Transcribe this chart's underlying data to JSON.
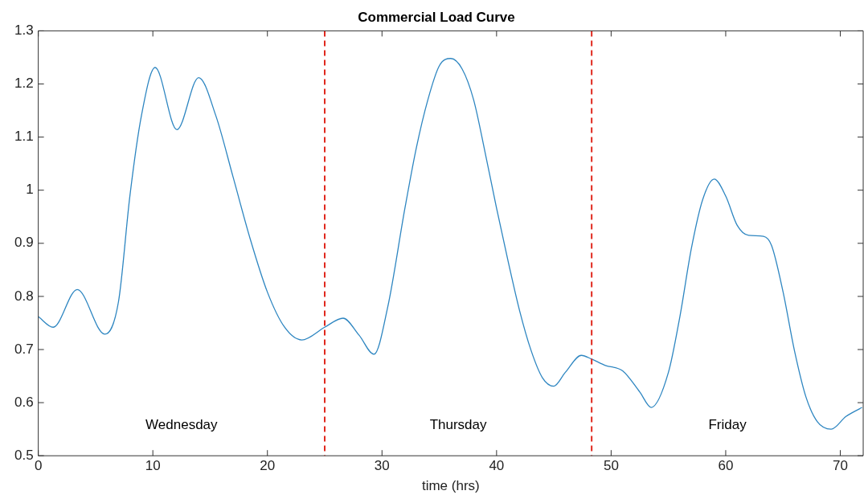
{
  "chart_data": {
    "type": "line",
    "title": "Commercial Load Curve",
    "xlabel": "time (hrs)",
    "x": [
      0,
      1.3,
      3.4,
      5.8,
      7,
      8,
      9,
      10.2,
      12.1,
      14,
      15.5,
      17,
      18.5,
      20,
      21.5,
      23,
      25,
      26.6,
      28,
      29.3,
      30.5,
      32,
      33,
      34,
      35,
      36,
      37,
      38,
      39,
      40,
      41,
      42,
      43,
      44,
      45,
      46,
      47.4,
      48.3,
      49.5,
      51,
      52.5,
      53.5,
      55,
      56,
      57,
      58,
      59,
      60,
      61,
      62,
      63.3,
      64,
      65,
      66,
      67,
      68,
      69.2,
      70.5,
      71.9
    ],
    "series": [
      {
        "color": "#2e86c1",
        "values": [
          0.762,
          0.742,
          0.813,
          0.729,
          0.79,
          0.99,
          1.14,
          1.231,
          1.114,
          1.212,
          1.14,
          1.025,
          0.908,
          0.808,
          0.742,
          0.718,
          0.742,
          0.759,
          0.727,
          0.691,
          0.78,
          0.966,
          1.08,
          1.17,
          1.234,
          1.248,
          1.228,
          1.17,
          1.071,
          0.966,
          0.867,
          0.774,
          0.699,
          0.647,
          0.631,
          0.657,
          0.689,
          0.682,
          0.67,
          0.66,
          0.62,
          0.591,
          0.657,
          0.762,
          0.89,
          0.983,
          1.021,
          0.989,
          0.934,
          0.915,
          0.913,
          0.896,
          0.809,
          0.698,
          0.611,
          0.564,
          0.55,
          0.574,
          0.591
        ]
      }
    ],
    "xlim": [
      0,
      72
    ],
    "xticks": [
      0,
      10,
      20,
      30,
      40,
      50,
      60,
      70
    ],
    "ylim": [
      0.5,
      1.3
    ],
    "yticks": [
      {
        "value": 0.5,
        "label": "0.5"
      },
      {
        "value": 0.6,
        "label": "0.6"
      },
      {
        "value": 0.7,
        "label": "0.7"
      },
      {
        "value": 0.8,
        "label": "0.8"
      },
      {
        "value": 0.9,
        "label": "0.9"
      },
      {
        "value": 1,
        "label": "1"
      },
      {
        "value": 1.1,
        "label": "1.1"
      },
      {
        "value": 1.2,
        "label": "1.2"
      },
      {
        "value": 1.3,
        "label": "1.3"
      }
    ],
    "ref_lines": [
      {
        "axis": "x",
        "value": 25,
        "color": "#e0281e",
        "line_style": "dashed"
      },
      {
        "axis": "x",
        "value": 48.3,
        "color": "#e0281e",
        "line_style": "dashed"
      }
    ],
    "annotations": [
      "Wednesday",
      "Thursday",
      "Friday"
    ],
    "grid": false,
    "legend": false,
    "marker": "none",
    "line_style": "solid"
  }
}
